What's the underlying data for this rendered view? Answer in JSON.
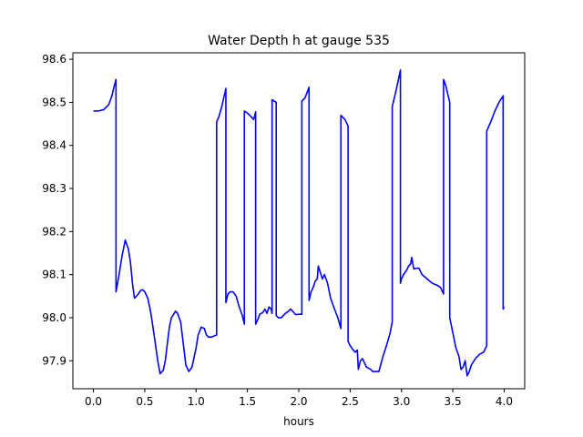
{
  "chart_data": {
    "type": "line",
    "title": "Water Depth h at gauge 535",
    "xlabel": "hours",
    "ylabel": "",
    "xlim": [
      -0.2,
      4.2
    ],
    "ylim": [
      97.835,
      98.615
    ],
    "grid": false,
    "xticks": [
      0.0,
      0.5,
      1.0,
      1.5,
      2.0,
      2.5,
      3.0,
      3.5,
      4.0
    ],
    "xtick_labels": [
      "0.0",
      "0.5",
      "1.0",
      "1.5",
      "2.0",
      "2.5",
      "3.0",
      "3.5",
      "4.0"
    ],
    "yticks": [
      97.9,
      98.0,
      98.1,
      98.2,
      98.3,
      98.4,
      98.5,
      98.6
    ],
    "ytick_labels": [
      "97.9",
      "98.0",
      "98.1",
      "98.2",
      "98.3",
      "98.4",
      "98.5",
      "98.6"
    ],
    "series": [
      {
        "color": "#0000ff",
        "x": [
          0.0,
          0.05,
          0.1,
          0.15,
          0.18,
          0.2,
          0.22,
          0.22,
          0.25,
          0.28,
          0.31,
          0.34,
          0.36,
          0.38,
          0.4,
          0.43,
          0.46,
          0.48,
          0.5,
          0.53,
          0.56,
          0.6,
          0.63,
          0.65,
          0.68,
          0.7,
          0.72,
          0.74,
          0.76,
          0.8,
          0.82,
          0.85,
          0.88,
          0.9,
          0.93,
          0.96,
          1.0,
          1.02,
          1.05,
          1.08,
          1.1,
          1.12,
          1.15,
          1.18,
          1.2,
          1.2,
          1.22,
          1.25,
          1.29,
          1.29,
          1.31,
          1.33,
          1.36,
          1.39,
          1.42,
          1.45,
          1.47,
          1.47,
          1.5,
          1.53,
          1.56,
          1.58,
          1.58,
          1.6,
          1.62,
          1.65,
          1.67,
          1.69,
          1.71,
          1.73,
          1.74,
          1.74,
          1.78,
          1.78,
          1.8,
          1.83,
          1.85,
          1.87,
          1.9,
          1.92,
          1.94,
          1.97,
          2.0,
          2.03,
          2.03,
          2.06,
          2.1,
          2.1,
          2.12,
          2.14,
          2.16,
          2.18,
          2.19,
          2.21,
          2.23,
          2.25,
          2.28,
          2.31,
          2.34,
          2.38,
          2.41,
          2.41,
          2.45,
          2.48,
          2.48,
          2.5,
          2.53,
          2.55,
          2.57,
          2.58,
          2.6,
          2.62,
          2.64,
          2.66,
          2.7,
          2.72,
          2.75,
          2.78,
          2.82,
          2.86,
          2.89,
          2.91,
          2.91,
          2.95,
          2.99,
          2.99,
          3.0,
          3.02,
          3.05,
          3.07,
          3.09,
          3.1,
          3.12,
          3.15,
          3.17,
          3.2,
          3.25,
          3.3,
          3.35,
          3.38,
          3.41,
          3.41,
          3.43,
          3.45,
          3.47,
          3.47,
          3.5,
          3.53,
          3.56,
          3.58,
          3.6,
          3.62,
          3.64,
          3.66,
          3.68,
          3.72,
          3.76,
          3.8,
          3.83,
          3.83,
          3.87,
          3.91,
          3.95,
          3.99,
          3.99,
          4.0
        ],
        "y": [
          98.48,
          98.48,
          98.483,
          98.495,
          98.515,
          98.535,
          98.553,
          98.06,
          98.1,
          98.145,
          98.18,
          98.16,
          98.13,
          98.08,
          98.045,
          98.053,
          98.063,
          98.065,
          98.06,
          98.045,
          98.01,
          97.945,
          97.895,
          97.87,
          97.878,
          97.9,
          97.94,
          97.978,
          98.0,
          98.015,
          98.01,
          97.99,
          97.93,
          97.89,
          97.875,
          97.885,
          97.93,
          97.96,
          97.978,
          97.975,
          97.96,
          97.955,
          97.955,
          97.958,
          97.96,
          98.455,
          98.465,
          98.49,
          98.532,
          98.035,
          98.055,
          98.06,
          98.06,
          98.05,
          98.025,
          98.005,
          97.985,
          98.48,
          98.475,
          98.468,
          98.46,
          98.478,
          97.985,
          97.995,
          98.008,
          98.012,
          98.02,
          98.01,
          98.025,
          98.02,
          98.01,
          98.506,
          98.5,
          98.005,
          98.0,
          98.0,
          98.005,
          98.01,
          98.015,
          98.02,
          98.015,
          98.007,
          98.008,
          98.008,
          98.503,
          98.51,
          98.535,
          98.04,
          98.06,
          98.07,
          98.085,
          98.09,
          98.12,
          98.105,
          98.09,
          98.1,
          98.08,
          98.045,
          98.025,
          98.0,
          97.975,
          98.47,
          98.46,
          98.445,
          97.945,
          97.935,
          97.925,
          97.92,
          97.925,
          97.88,
          97.9,
          97.905,
          97.895,
          97.885,
          97.88,
          97.875,
          97.875,
          97.875,
          97.91,
          97.94,
          97.965,
          97.99,
          98.49,
          98.53,
          98.575,
          98.08,
          98.09,
          98.1,
          98.11,
          98.12,
          98.125,
          98.14,
          98.113,
          98.115,
          98.115,
          98.1,
          98.09,
          98.08,
          98.075,
          98.07,
          98.055,
          98.553,
          98.54,
          98.52,
          98.5,
          98.0,
          97.965,
          97.93,
          97.91,
          97.88,
          97.885,
          97.9,
          97.865,
          97.875,
          97.89,
          97.905,
          97.915,
          97.92,
          97.935,
          98.433,
          98.455,
          98.48,
          98.5,
          98.515,
          98.02,
          98.025
        ]
      }
    ]
  }
}
